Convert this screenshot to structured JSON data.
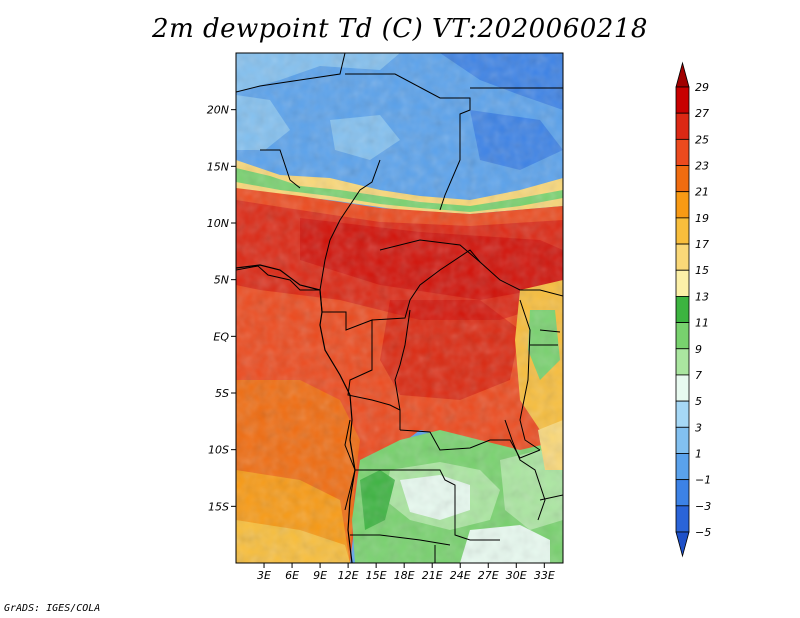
{
  "title": "2m dewpoint Td (C) VT:2020060218",
  "credit": "GrADS: IGES/COLA",
  "map": {
    "lon_range": [
      0,
      35
    ],
    "lat_range": [
      -20,
      25
    ],
    "lat_ticks": [
      {
        "value": 20,
        "label": "20N"
      },
      {
        "value": 15,
        "label": "15N"
      },
      {
        "value": 10,
        "label": "10N"
      },
      {
        "value": 5,
        "label": "5N"
      },
      {
        "value": 0,
        "label": "EQ"
      },
      {
        "value": -5,
        "label": "5S"
      },
      {
        "value": -10,
        "label": "10S"
      },
      {
        "value": -15,
        "label": "15S"
      }
    ],
    "lon_ticks": [
      {
        "value": 3,
        "label": "3E"
      },
      {
        "value": 6,
        "label": "6E"
      },
      {
        "value": 9,
        "label": "9E"
      },
      {
        "value": 12,
        "label": "12E"
      },
      {
        "value": 15,
        "label": "15E"
      },
      {
        "value": 18,
        "label": "18E"
      },
      {
        "value": 21,
        "label": "21E"
      },
      {
        "value": 24,
        "label": "24E"
      },
      {
        "value": 27,
        "label": "27E"
      },
      {
        "value": 30,
        "label": "30E"
      },
      {
        "value": 33,
        "label": "33E"
      }
    ]
  },
  "colorbar": {
    "levels": [
      {
        "label": "29",
        "color": "#a00000"
      },
      {
        "label": "27",
        "color": "#c80000"
      },
      {
        "label": "25",
        "color": "#dc2814"
      },
      {
        "label": "23",
        "color": "#ec4a1e"
      },
      {
        "label": "21",
        "color": "#f06c10"
      },
      {
        "label": "19",
        "color": "#f89a14"
      },
      {
        "label": "17",
        "color": "#f8be3c"
      },
      {
        "label": "15",
        "color": "#fad878"
      },
      {
        "label": "13",
        "color": "#fcf0a8"
      },
      {
        "label": "11",
        "color": "#3cb440"
      },
      {
        "label": "9",
        "color": "#78d26e"
      },
      {
        "label": "7",
        "color": "#aae6a0"
      },
      {
        "label": "5",
        "color": "#e8faf0"
      },
      {
        "label": "3",
        "color": "#a6d8f6"
      },
      {
        "label": "1",
        "color": "#82c0f0"
      },
      {
        "label": "−1",
        "color": "#5aa2ec"
      },
      {
        "label": "−3",
        "color": "#3c82e6"
      },
      {
        "label": "−5",
        "color": "#2a64d8"
      }
    ],
    "bottom_color": "#1e50c8"
  }
}
